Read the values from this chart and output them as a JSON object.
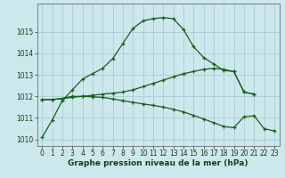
{
  "xlabel": "Graphe pression niveau de la mer (hPa)",
  "background_color": "#cce8ed",
  "grid_color": "#aacdd4",
  "line_color": "#1a5c1a",
  "x": [
    0,
    1,
    2,
    3,
    4,
    5,
    6,
    7,
    8,
    9,
    10,
    11,
    12,
    13,
    14,
    15,
    16,
    17,
    18,
    19,
    20,
    21,
    22,
    23
  ],
  "series1_y": [
    1010.1,
    1010.9,
    1011.8,
    1012.3,
    1012.8,
    1013.05,
    1013.3,
    1013.75,
    1014.45,
    1015.15,
    1015.5,
    1015.6,
    1015.65,
    1015.6,
    1015.1,
    1014.3,
    1013.8,
    1013.5,
    1013.2,
    1013.15,
    1012.2,
    1012.1,
    null,
    null
  ],
  "series2_y": [
    1011.85,
    1011.85,
    1011.9,
    1011.95,
    1012.0,
    1012.05,
    1012.1,
    1012.15,
    1012.2,
    1012.3,
    1012.45,
    1012.6,
    1012.75,
    1012.9,
    1013.05,
    1013.15,
    1013.25,
    1013.3,
    1013.25,
    1013.15,
    1012.2,
    1012.1,
    null,
    null
  ],
  "series3_y": [
    1011.85,
    1011.85,
    1011.9,
    1012.0,
    1012.0,
    1011.98,
    1011.95,
    1011.88,
    1011.8,
    1011.72,
    1011.65,
    1011.58,
    1011.5,
    1011.4,
    1011.28,
    1011.12,
    1010.95,
    1010.78,
    1010.6,
    1010.55,
    1011.05,
    1011.1,
    1010.5,
    1010.4
  ],
  "ylim": [
    1009.7,
    1016.3
  ],
  "yticks": [
    1010,
    1011,
    1012,
    1013,
    1014,
    1015
  ],
  "xlim": [
    -0.5,
    23.5
  ],
  "xticks": [
    0,
    1,
    2,
    3,
    4,
    5,
    6,
    7,
    8,
    9,
    10,
    11,
    12,
    13,
    14,
    15,
    16,
    17,
    18,
    19,
    20,
    21,
    22,
    23
  ],
  "tick_fontsize": 5.5,
  "xlabel_fontsize": 6.5
}
